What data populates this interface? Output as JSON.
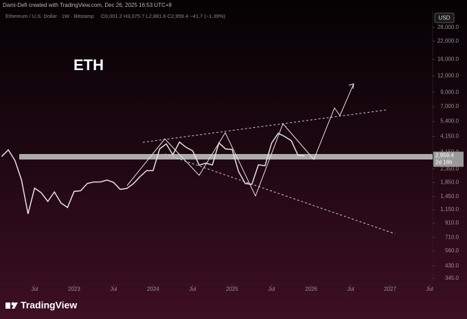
{
  "credit": "Dami-Defi created with TradingView.com, Dec 26, 2025 16:53 UTC+8",
  "chart_data": {
    "type": "line",
    "symbol": "Ethereum / U.S. Dollar · 1W · Bitstamp",
    "ohlc_text": "O3,001.2 H3,075.7 L2,881.6 C2,959.4 −41.7 (−1.39%)",
    "annotation": "ETH",
    "currency": "USD",
    "color": "#e6e6e6",
    "log_scale": true,
    "x": [
      "2022-02",
      "2022-03",
      "2022-04",
      "2022-05",
      "2022-06",
      "2022-07",
      "2022-08",
      "2022-09",
      "2022-10",
      "2022-11",
      "2022-12",
      "2023-01",
      "2023-02",
      "2023-03",
      "2023-04",
      "2023-05",
      "2023-06",
      "2023-07",
      "2023-08",
      "2023-09",
      "2023-10",
      "2023-11",
      "2023-12",
      "2024-01",
      "2024-02",
      "2024-03",
      "2024-04",
      "2024-05",
      "2024-06",
      "2024-07",
      "2024-08",
      "2024-09",
      "2024-10",
      "2024-11",
      "2024-12",
      "2025-01",
      "2025-02",
      "2025-03",
      "2025-04",
      "2025-05",
      "2025-06",
      "2025-07",
      "2025-08",
      "2025-09",
      "2025-10",
      "2025-11",
      "2025-12"
    ],
    "values": [
      2920,
      3280,
      2730,
      1940,
      1070,
      1680,
      1550,
      1330,
      1570,
      1295,
      1196,
      1585,
      1605,
      1822,
      1870,
      1873,
      1934,
      1856,
      1645,
      1671,
      1815,
      2052,
      2282,
      2283,
      3340,
      3645,
      3015,
      3762,
      3433,
      3232,
      2513,
      2603,
      2518,
      3705,
      3337,
      3300,
      2237,
      1822,
      1794,
      2528,
      2486,
      3698,
      4391,
      4145,
      3848,
      2990,
      2959.4
    ],
    "xlim": [
      "2022-02",
      "2027-07"
    ],
    "xticks": [
      {
        "value": "2022-07",
        "label": "Jul"
      },
      {
        "value": "2023-01",
        "label": "2023"
      },
      {
        "value": "2023-07",
        "label": "Jul"
      },
      {
        "value": "2024-01",
        "label": "2024"
      },
      {
        "value": "2024-07",
        "label": "Jul"
      },
      {
        "value": "2025-01",
        "label": "2025"
      },
      {
        "value": "2025-07",
        "label": "Jul"
      },
      {
        "value": "2026-01",
        "label": "2026"
      },
      {
        "value": "2026-07",
        "label": "Jul"
      },
      {
        "value": "2027-01",
        "label": "2027"
      },
      {
        "value": "2027-07",
        "label": "Jul"
      }
    ],
    "ylim": [
      310,
      37800
    ],
    "yticks": [
      {
        "value": 28000,
        "label": "28,000.0"
      },
      {
        "value": 22000,
        "label": "22,000.0"
      },
      {
        "value": 16000,
        "label": "16,000.0"
      },
      {
        "value": 12000,
        "label": "12,000.0"
      },
      {
        "value": 9000,
        "label": "9,000.0"
      },
      {
        "value": 7000,
        "label": "7,000.0"
      },
      {
        "value": 5400,
        "label": "5,400.0"
      },
      {
        "value": 4150,
        "label": "4,150.0"
      },
      {
        "value": 3150,
        "label": "3,150.0"
      },
      {
        "value": 2350,
        "label": "2,350.0"
      },
      {
        "value": 1850,
        "label": "1,850.0"
      },
      {
        "value": 1450,
        "label": "1,450.0"
      },
      {
        "value": 1150,
        "label": "1,150.0"
      },
      {
        "value": 910,
        "label": "910.0"
      },
      {
        "value": 710,
        "label": "710.0"
      },
      {
        "value": 560,
        "label": "560.0"
      },
      {
        "value": 430,
        "label": "430.0"
      },
      {
        "value": 345,
        "label": "345.0"
      }
    ],
    "last_price": {
      "value": 2959.4,
      "label": "2,959.4"
    },
    "countdown": "2d 16h"
  },
  "footer": {
    "brand": "TradingView"
  }
}
